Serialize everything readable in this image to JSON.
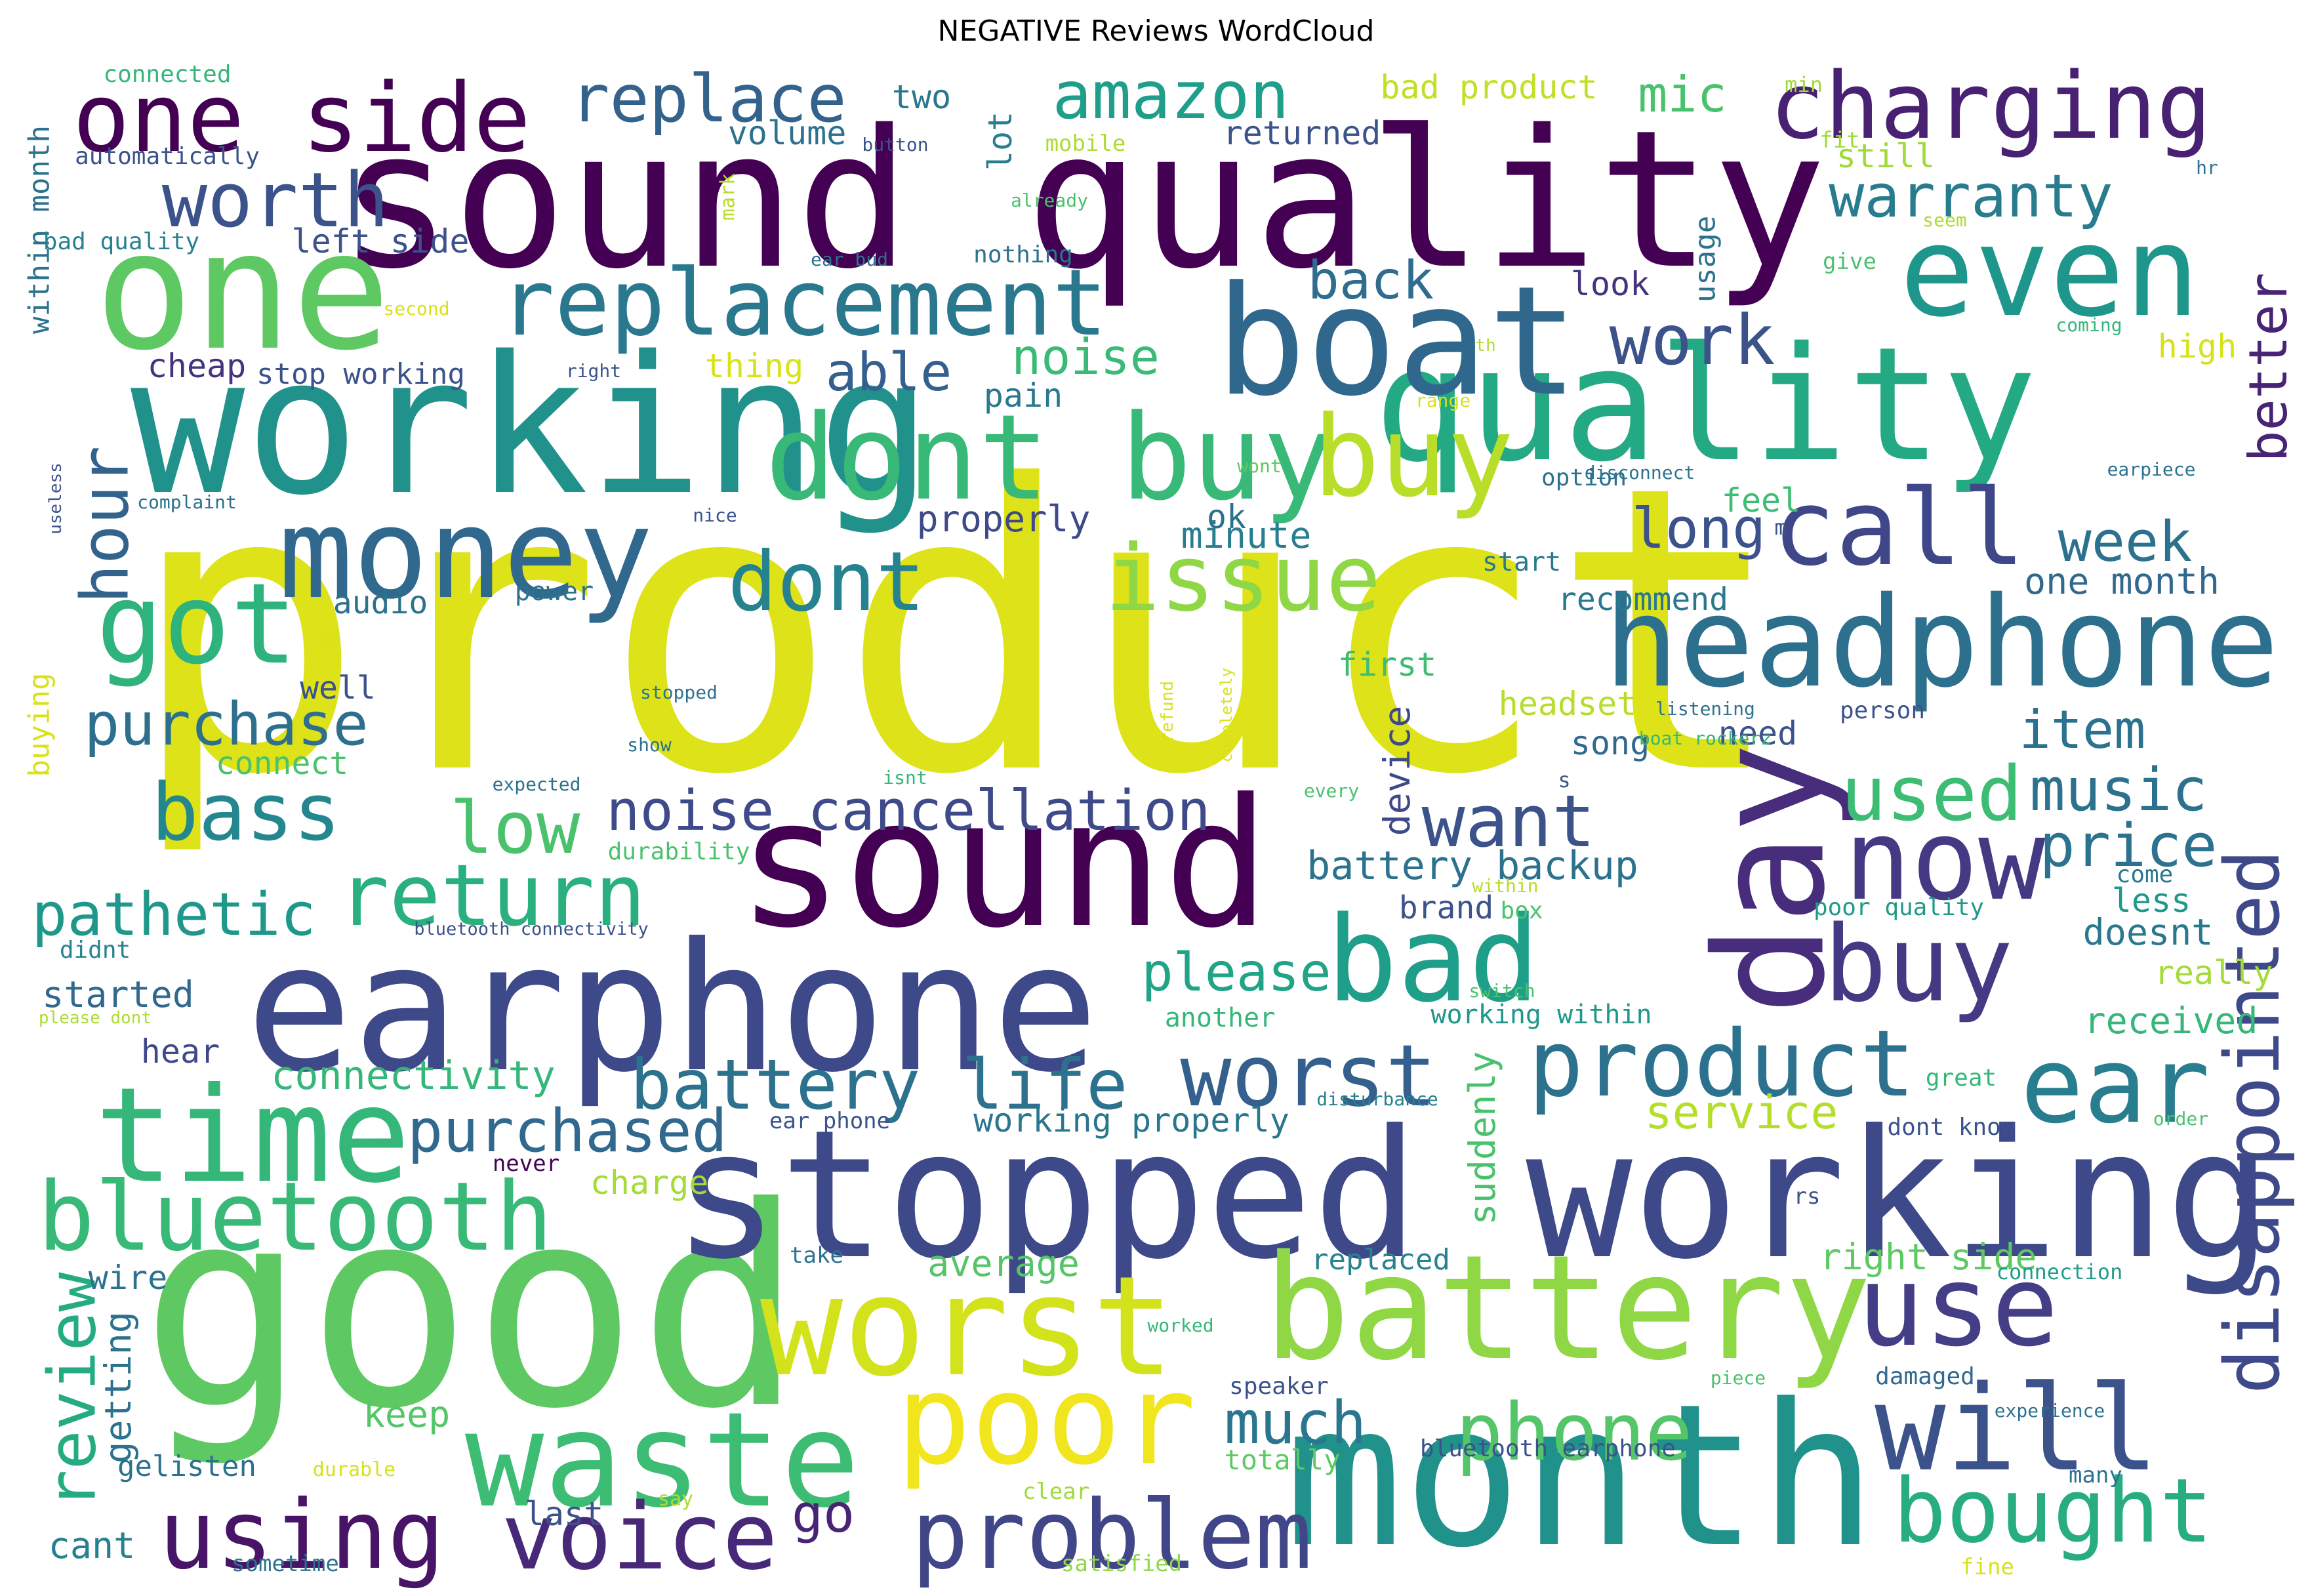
{
  "title": "NEGATIVE Reviews WordCloud",
  "palette": [
    "#440154",
    "#472d7b",
    "#3b528b",
    "#2c728e",
    "#21918c",
    "#28ae80",
    "#5ec962",
    "#addc30",
    "#fde725"
  ],
  "words": [
    {
      "text": "product",
      "weight": 1.0,
      "color": "#dde318"
    },
    {
      "text": "sound quality",
      "weight": 0.86,
      "color": "#440154"
    },
    {
      "text": "good",
      "weight": 0.82,
      "color": "#5ec962"
    },
    {
      "text": "month",
      "weight": 0.8,
      "color": "#21918c"
    },
    {
      "text": "working",
      "weight": 0.7,
      "color": "#21918c"
    },
    {
      "text": "stopped working",
      "weight": 0.69,
      "color": "#3e4989"
    },
    {
      "text": "earphone",
      "weight": 0.67,
      "color": "#3e4989"
    },
    {
      "text": "sound",
      "weight": 0.64,
      "color": "#440154"
    },
    {
      "text": "quality",
      "weight": 0.62,
      "color": "#23a983"
    },
    {
      "text": "boat",
      "weight": 0.57,
      "color": "#30678d"
    },
    {
      "text": "one",
      "weight": 0.56,
      "color": "#5ec962"
    },
    {
      "text": "battery",
      "weight": 0.55,
      "color": "#8fd744"
    },
    {
      "text": "day",
      "weight": 0.55,
      "color": "#472d7b"
    },
    {
      "text": "worst",
      "weight": 0.54,
      "color": "#d2e21b"
    },
    {
      "text": "time",
      "weight": 0.52,
      "color": "#35b779"
    },
    {
      "text": "waste",
      "weight": 0.51,
      "color": "#3dbc74"
    },
    {
      "text": "even",
      "weight": 0.5,
      "color": "#1f968b"
    },
    {
      "text": "money",
      "weight": 0.5,
      "color": "#31688e"
    },
    {
      "text": "headphone",
      "weight": 0.49,
      "color": "#2d708e"
    },
    {
      "text": "poor",
      "weight": 0.48,
      "color": "#f1e51d"
    },
    {
      "text": "dont buy",
      "weight": 0.48,
      "color": "#38b977"
    },
    {
      "text": "bad",
      "weight": 0.46,
      "color": "#1f9e89"
    },
    {
      "text": "will",
      "weight": 0.45,
      "color": "#3b528b"
    },
    {
      "text": "use",
      "weight": 0.45,
      "color": "#433e85"
    },
    {
      "text": "now",
      "weight": 0.42,
      "color": "#443a83"
    },
    {
      "text": "got",
      "weight": 0.42,
      "color": "#2eb37c"
    },
    {
      "text": "buy",
      "weight": 0.42,
      "color": "#b8de29"
    },
    {
      "text": "buy",
      "weight": 0.41,
      "color": "#443983"
    },
    {
      "text": "call",
      "weight": 0.4,
      "color": "#3f4788"
    },
    {
      "text": "ear",
      "weight": 0.4,
      "color": "#287d8e"
    },
    {
      "text": "problem",
      "weight": 0.38,
      "color": "#404688"
    },
    {
      "text": "bluetooth",
      "weight": 0.38,
      "color": "#38b977"
    },
    {
      "text": "one side",
      "weight": 0.37,
      "color": "#440154"
    },
    {
      "text": "using",
      "weight": 0.37,
      "color": "#481467"
    },
    {
      "text": "issue",
      "weight": 0.37,
      "color": "#8fd744"
    },
    {
      "text": "charging",
      "weight": 0.37,
      "color": "#482173"
    },
    {
      "text": "replacement",
      "weight": 0.36,
      "color": "#2a788e"
    },
    {
      "text": "product",
      "weight": 0.36,
      "color": "#2c728e"
    },
    {
      "text": "voice",
      "weight": 0.36,
      "color": "#482878"
    },
    {
      "text": "bought",
      "weight": 0.35,
      "color": "#27ad81"
    },
    {
      "text": "worst",
      "weight": 0.34,
      "color": "#355f8d"
    },
    {
      "text": "return",
      "weight": 0.34,
      "color": "#2ab07f"
    },
    {
      "text": "dont",
      "weight": 0.33,
      "color": "#26828e"
    },
    {
      "text": "phone",
      "weight": 0.33,
      "color": "#54c568"
    },
    {
      "text": "bass",
      "weight": 0.33,
      "color": "#24868e"
    },
    {
      "text": "worth",
      "weight": 0.3,
      "color": "#3b528b"
    },
    {
      "text": "disappointed",
      "weight": 0.3,
      "color": "#3e4989"
    },
    {
      "text": "used",
      "weight": 0.3,
      "color": "#3dbc74"
    },
    {
      "text": "low",
      "weight": 0.3,
      "color": "#4ac16d"
    },
    {
      "text": "want",
      "weight": 0.3,
      "color": "#3b528b"
    },
    {
      "text": "work",
      "weight": 0.28,
      "color": "#3b528b"
    },
    {
      "text": "battery life",
      "weight": 0.28,
      "color": "#2c728e"
    },
    {
      "text": "hour",
      "weight": 0.27,
      "color": "#33638d"
    },
    {
      "text": "amazon",
      "weight": 0.27,
      "color": "#1f9e89"
    },
    {
      "text": "review",
      "weight": 0.26,
      "color": "#25ab82"
    },
    {
      "text": "replace",
      "weight": 0.26,
      "color": "#33638d"
    },
    {
      "text": "music",
      "weight": 0.25,
      "color": "#2c728e"
    },
    {
      "text": "warranty",
      "weight": 0.25,
      "color": "#287c8e"
    },
    {
      "text": "purchase",
      "weight": 0.25,
      "color": "#2e6f8e"
    },
    {
      "text": "pathetic",
      "weight": 0.24,
      "color": "#1f988b"
    },
    {
      "text": "price",
      "weight": 0.24,
      "color": "#2c728e"
    },
    {
      "text": "purchased",
      "weight": 0.24,
      "color": "#31688e"
    },
    {
      "text": "much",
      "weight": 0.24,
      "color": "#2a768e"
    },
    {
      "text": "noise cancellation",
      "weight": 0.23,
      "color": "#3e4a89"
    },
    {
      "text": "week",
      "weight": 0.23,
      "color": "#2c728e"
    },
    {
      "text": "long",
      "weight": 0.23,
      "color": "#3b528b"
    },
    {
      "text": "item",
      "weight": 0.22,
      "color": "#2c728e"
    },
    {
      "text": "able",
      "weight": 0.22,
      "color": "#355f8d"
    },
    {
      "text": "back",
      "weight": 0.22,
      "color": "#2f6c8e"
    },
    {
      "text": "please",
      "weight": 0.22,
      "color": "#20a386"
    },
    {
      "text": "better",
      "weight": 0.22,
      "color": "#482475"
    },
    {
      "text": "go",
      "weight": 0.22,
      "color": "#482475"
    },
    {
      "text": "noise",
      "weight": 0.21,
      "color": "#3aba76"
    },
    {
      "text": "mic",
      "weight": 0.21,
      "color": "#4ac16d"
    },
    {
      "text": "service",
      "weight": 0.2,
      "color": "#b5de2b"
    },
    {
      "text": "connectivity",
      "weight": 0.18,
      "color": "#35b779"
    },
    {
      "text": "battery backup",
      "weight": 0.17,
      "color": "#2c728e"
    },
    {
      "text": "doesnt",
      "weight": 0.16,
      "color": "#2a788e"
    },
    {
      "text": "received",
      "weight": 0.16,
      "color": "#35b779"
    },
    {
      "text": "suddenly",
      "weight": 0.16,
      "color": "#4ac16d"
    },
    {
      "text": "device",
      "weight": 0.16,
      "color": "#3e4989"
    },
    {
      "text": "keep",
      "weight": 0.15,
      "color": "#54c568"
    },
    {
      "text": "cant",
      "weight": 0.15,
      "color": "#26818e"
    },
    {
      "text": "getting",
      "weight": 0.15,
      "color": "#2c728e"
    },
    {
      "text": "one month",
      "weight": 0.15,
      "color": "#31688e"
    },
    {
      "text": "properly",
      "weight": 0.15,
      "color": "#3e4989"
    },
    {
      "text": "minute",
      "weight": 0.15,
      "color": "#287d8e"
    },
    {
      "text": "average",
      "weight": 0.15,
      "color": "#54c568"
    },
    {
      "text": "started",
      "weight": 0.15,
      "color": "#31688e"
    },
    {
      "text": "right side",
      "weight": 0.15,
      "color": "#5ec962"
    },
    {
      "text": "less",
      "weight": 0.15,
      "color": "#1f9a8a"
    },
    {
      "text": "really",
      "weight": 0.15,
      "color": "#a5db36"
    },
    {
      "text": "left side",
      "weight": 0.14,
      "color": "#3b528b"
    },
    {
      "text": "first",
      "weight": 0.14,
      "color": "#3dbc74"
    },
    {
      "text": "wire",
      "weight": 0.14,
      "color": "#2c728e"
    },
    {
      "text": "hear",
      "weight": 0.14,
      "color": "#3e4989"
    },
    {
      "text": "lot",
      "weight": 0.14,
      "color": "#287d8e"
    },
    {
      "text": "feel",
      "weight": 0.14,
      "color": "#3dbc74"
    },
    {
      "text": "look",
      "weight": 0.14,
      "color": "#46337e"
    },
    {
      "text": "still",
      "weight": 0.14,
      "color": "#a0da39"
    },
    {
      "text": "high",
      "weight": 0.14,
      "color": "#d8e219"
    },
    {
      "text": "two",
      "weight": 0.14,
      "color": "#2a788e"
    },
    {
      "text": "headset",
      "weight": 0.14,
      "color": "#b5de2b"
    },
    {
      "text": "thing",
      "weight": 0.14,
      "color": "#d8e219"
    },
    {
      "text": "pain",
      "weight": 0.14,
      "color": "#2a788e"
    },
    {
      "text": "song",
      "weight": 0.14,
      "color": "#31688e"
    },
    {
      "text": "need",
      "weight": 0.14,
      "color": "#3b528b"
    },
    {
      "text": "charge",
      "weight": 0.14,
      "color": "#a5db36"
    },
    {
      "text": "last",
      "weight": 0.14,
      "color": "#3b528b"
    },
    {
      "text": "ok",
      "weight": 0.14,
      "color": "#2c728e"
    },
    {
      "text": "bad product",
      "weight": 0.14,
      "color": "#c2df23"
    },
    {
      "text": "working properly",
      "weight": 0.14,
      "color": "#2a768e"
    },
    {
      "text": "returned",
      "weight": 0.14,
      "color": "#3b528b"
    },
    {
      "text": "volume",
      "weight": 0.14,
      "color": "#2c728e"
    },
    {
      "text": "cheap",
      "weight": 0.14,
      "color": "#46337e"
    },
    {
      "text": "stop working",
      "weight": 0.12,
      "color": "#3b528b"
    },
    {
      "text": "audio",
      "weight": 0.13,
      "color": "#2c728e"
    },
    {
      "text": "well",
      "weight": 0.13,
      "color": "#3b528b"
    },
    {
      "text": "connect",
      "weight": 0.13,
      "color": "#4ac16d"
    },
    {
      "text": "recommend",
      "weight": 0.13,
      "color": "#2a788e"
    },
    {
      "text": "brand",
      "weight": 0.13,
      "color": "#3b528b"
    },
    {
      "text": "usage",
      "weight": 0.12,
      "color": "#2c728e"
    },
    {
      "text": "replaced",
      "weight": 0.12,
      "color": "#26828e"
    },
    {
      "text": "within month",
      "weight": 0.12,
      "color": "#2c728e"
    },
    {
      "text": "buying",
      "weight": 0.12,
      "color": "#d8e219"
    },
    {
      "text": "gelisten",
      "weight": 0.12,
      "color": "#2c728e"
    },
    {
      "text": "totally",
      "weight": 0.11,
      "color": "#5ec962"
    },
    {
      "text": "working within",
      "weight": 0.11,
      "color": "#1f988b"
    },
    {
      "text": "another",
      "weight": 0.11,
      "color": "#35b779"
    },
    {
      "text": "start",
      "weight": 0.11,
      "color": "#2a788e"
    },
    {
      "text": "power",
      "weight": 0.11,
      "color": "#2c728e"
    },
    {
      "text": "durability",
      "weight": 0.1,
      "color": "#4ac16d"
    },
    {
      "text": "speaker",
      "weight": 0.1,
      "color": "#3b528b"
    },
    {
      "text": "bluetooth earphone",
      "weight": 0.1,
      "color": "#3b528b"
    },
    {
      "text": "damaged",
      "weight": 0.1,
      "color": "#31688e"
    },
    {
      "text": "come",
      "weight": 0.1,
      "color": "#2a788e"
    },
    {
      "text": "poor quality",
      "weight": 0.1,
      "color": "#1f9a8a"
    },
    {
      "text": "great",
      "weight": 0.1,
      "color": "#35b779"
    },
    {
      "text": "box",
      "weight": 0.1,
      "color": "#4ac16d"
    },
    {
      "text": "dont know",
      "weight": 0.1,
      "color": "#3b528b"
    },
    {
      "text": "option",
      "weight": 0.1,
      "color": "#2c728e"
    },
    {
      "text": "person",
      "weight": 0.1,
      "color": "#3b528b"
    },
    {
      "text": "nothing",
      "weight": 0.1,
      "color": "#2c728e"
    },
    {
      "text": "bad quality",
      "weight": 0.1,
      "color": "#26828e"
    },
    {
      "text": "automatically",
      "weight": 0.1,
      "color": "#3b528b"
    },
    {
      "text": "connected",
      "weight": 0.1,
      "color": "#35b779"
    },
    {
      "text": "didnt",
      "weight": 0.1,
      "color": "#26828e"
    },
    {
      "text": "sometime",
      "weight": 0.09,
      "color": "#2c728e"
    },
    {
      "text": "satisfied",
      "weight": 0.09,
      "color": "#8fd744"
    },
    {
      "text": "clear",
      "weight": 0.09,
      "color": "#a0da39"
    },
    {
      "text": "fine",
      "weight": 0.09,
      "color": "#d8e219"
    },
    {
      "text": "many",
      "weight": 0.09,
      "color": "#2c728e"
    },
    {
      "text": "give",
      "weight": 0.09,
      "color": "#4ac16d"
    },
    {
      "text": "fit",
      "weight": 0.09,
      "color": "#a0da39"
    },
    {
      "text": "mobile",
      "weight": 0.09,
      "color": "#addc30"
    },
    {
      "text": "ear phone",
      "weight": 0.09,
      "color": "#3b528b"
    },
    {
      "text": "take",
      "weight": 0.09,
      "color": "#2c728e"
    },
    {
      "text": "never",
      "weight": 0.09,
      "color": "#440154"
    },
    {
      "text": "rs",
      "weight": 0.09,
      "color": "#3b528b"
    },
    {
      "text": "say",
      "weight": 0.08,
      "color": "#addc30"
    },
    {
      "text": "durable",
      "weight": 0.08,
      "color": "#d8e219"
    },
    {
      "text": "min",
      "weight": 0.08,
      "color": "#a0da39"
    },
    {
      "text": "mark",
      "weight": 0.08,
      "color": "#b5de2b"
    },
    {
      "text": "connection",
      "weight": 0.08,
      "color": "#1f9e89"
    },
    {
      "text": "worked",
      "weight": 0.07,
      "color": "#35b779"
    },
    {
      "text": "experience",
      "weight": 0.07,
      "color": "#2c728e"
    },
    {
      "text": "ear bud",
      "weight": 0.07,
      "color": "#2c728e"
    },
    {
      "text": "listening",
      "weight": 0.07,
      "color": "#2c728e"
    },
    {
      "text": "boat rockerz",
      "weight": 0.07,
      "color": "#35b779"
    },
    {
      "text": "bluetooth connectivity",
      "weight": 0.07,
      "color": "#3b528b"
    },
    {
      "text": "please dont",
      "weight": 0.06,
      "color": "#addc30"
    },
    {
      "text": "stopped",
      "weight": 0.07,
      "color": "#2c728e"
    },
    {
      "text": "show",
      "weight": 0.07,
      "color": "#2c728e"
    },
    {
      "text": "expected",
      "weight": 0.07,
      "color": "#2c728e"
    },
    {
      "text": "isnt",
      "weight": 0.07,
      "color": "#35b779"
    },
    {
      "text": "every",
      "weight": 0.07,
      "color": "#4ac16d"
    },
    {
      "text": "within",
      "weight": 0.07,
      "color": "#b5de2b"
    },
    {
      "text": "switch",
      "weight": 0.07,
      "color": "#4ac16d"
    },
    {
      "text": "disturbance",
      "weight": 0.07,
      "color": "#26828e"
    },
    {
      "text": "order",
      "weight": 0.07,
      "color": "#4ac16d"
    },
    {
      "text": "piece",
      "weight": 0.07,
      "color": "#4ac16d"
    },
    {
      "text": "right",
      "weight": 0.07,
      "color": "#3b528b"
    },
    {
      "text": "button",
      "weight": 0.07,
      "color": "#3b528b"
    },
    {
      "text": "already",
      "weight": 0.07,
      "color": "#4ac16d"
    },
    {
      "text": "second",
      "weight": 0.07,
      "color": "#d8e219"
    },
    {
      "text": "seem",
      "weight": 0.07,
      "color": "#addc30"
    },
    {
      "text": "coming",
      "weight": 0.07,
      "color": "#35b779"
    },
    {
      "text": "hr",
      "weight": 0.07,
      "color": "#2c728e"
    },
    {
      "text": "earpiece",
      "weight": 0.07,
      "color": "#2c728e"
    },
    {
      "text": "disconnect",
      "weight": 0.07,
      "color": "#2c728e"
    },
    {
      "text": "wont",
      "weight": 0.07,
      "color": "#5ec962"
    },
    {
      "text": "range",
      "weight": 0.07,
      "color": "#d8e219"
    },
    {
      "text": "nice",
      "weight": 0.07,
      "color": "#3b528b"
    },
    {
      "text": "complaint",
      "weight": 0.07,
      "color": "#2c728e"
    },
    {
      "text": "useless",
      "weight": 0.07,
      "color": "#3b528b"
    },
    {
      "text": "refund",
      "weight": 0.07,
      "color": "#d8e219"
    },
    {
      "text": "completely",
      "weight": 0.06,
      "color": "#d8e219"
    },
    {
      "text": "im",
      "weight": 0.07,
      "color": "#d8e219"
    },
    {
      "text": "th",
      "weight": 0.06,
      "color": "#addc30"
    },
    {
      "text": "m",
      "weight": 0.07,
      "color": "#3b528b"
    },
    {
      "text": "s",
      "weight": 0.07,
      "color": "#3b528b"
    }
  ]
}
